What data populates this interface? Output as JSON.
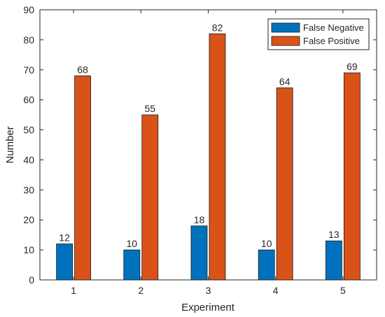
{
  "chart_data": {
    "type": "bar",
    "title": "",
    "xlabel": "Experiment",
    "ylabel": "Number",
    "categories": [
      "1",
      "2",
      "3",
      "4",
      "5"
    ],
    "series": [
      {
        "name": "False Negative",
        "values": [
          12,
          10,
          18,
          10,
          13
        ],
        "color": "#0072BD"
      },
      {
        "name": "False Positive",
        "values": [
          68,
          55,
          82,
          64,
          69
        ],
        "color": "#D95319"
      }
    ],
    "ylim": [
      0,
      90
    ],
    "yticks": [
      0,
      10,
      20,
      30,
      40,
      50,
      60,
      70,
      80,
      90
    ],
    "grid": false,
    "legend_position": "top-right",
    "data_labels": true
  }
}
